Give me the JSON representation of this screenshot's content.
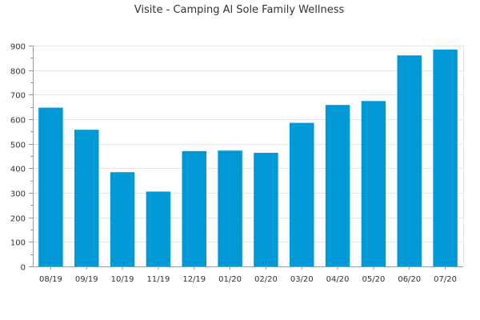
{
  "chart_data": {
    "type": "bar",
    "title": "Visite - Camping Al Sole Family Wellness",
    "xlabel": "",
    "ylabel": "",
    "categories": [
      "08/19",
      "09/19",
      "10/19",
      "11/19",
      "12/19",
      "01/20",
      "02/20",
      "03/20",
      "04/20",
      "05/20",
      "06/20",
      "07/20"
    ],
    "values": [
      647,
      557,
      384,
      305,
      470,
      472,
      463,
      585,
      658,
      674,
      860,
      884
    ],
    "ylim": [
      0,
      900
    ],
    "yticks": [
      0,
      100,
      200,
      300,
      400,
      500,
      600,
      700,
      800,
      900
    ],
    "grid": true,
    "bar_color": "#0099d6"
  }
}
